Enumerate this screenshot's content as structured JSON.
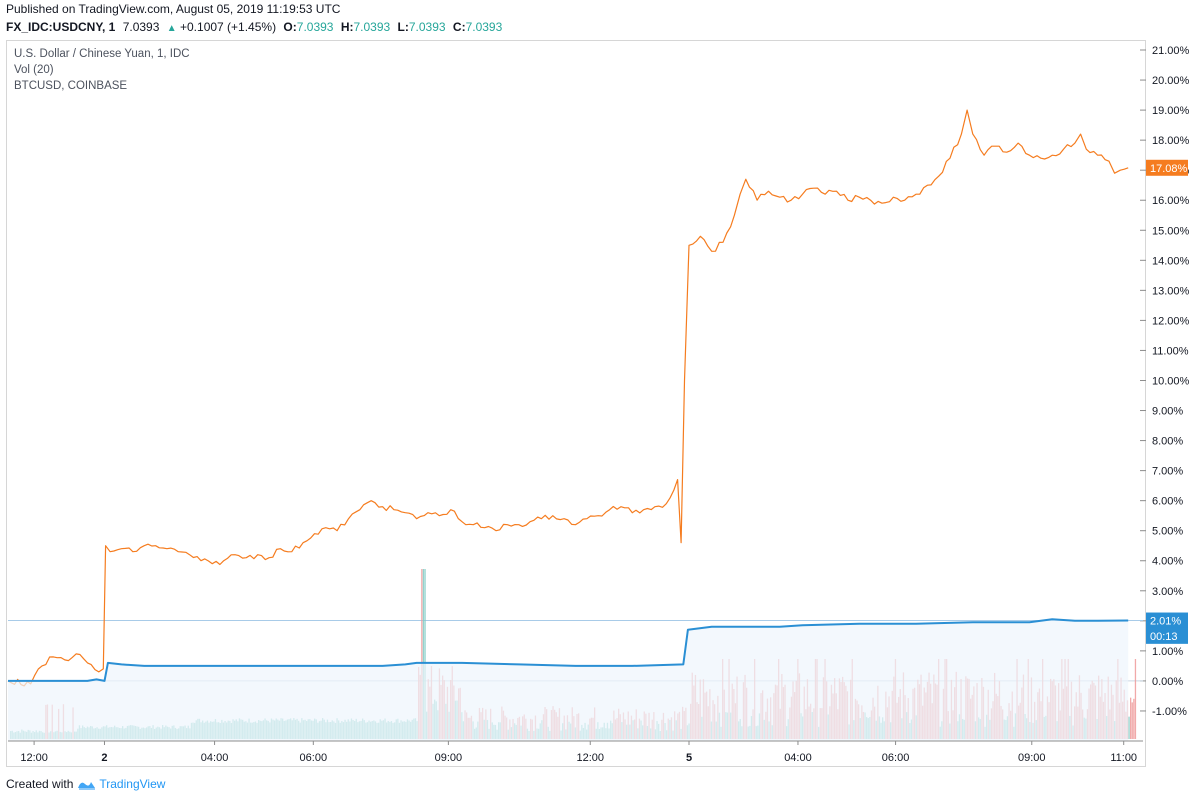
{
  "header": {
    "published": "Published on TradingView.com, August 05, 2019 11:19:53 UTC",
    "symbol": "FX_IDC:USDCNY, 1",
    "last": "7.0393",
    "change": "+0.1007 (+1.45%)",
    "o_label": "O:",
    "o_val": "7.0393",
    "h_label": "H:",
    "h_val": "7.0393",
    "l_label": "L:",
    "l_val": "7.0393",
    "c_label": "C:",
    "c_val": "7.0393",
    "up_arrow": "▲"
  },
  "legend": {
    "main": "U.S. Dollar / Chinese Yuan, 1, IDC",
    "vol": "Vol (20)",
    "compare": "BTCUSD, COINBASE"
  },
  "footer": {
    "created_with": "Created with",
    "brand": "TradingView"
  },
  "colors": {
    "usdcny": "#f57c1f",
    "btc": "#2a8fd4",
    "vol_down": "#ef9a9a",
    "vol_up": "#80cbc4",
    "area_fill": "#eef5fc",
    "axis_text": "#131722"
  },
  "chart_data": {
    "type": "line",
    "title": "U.S. Dollar / Chinese Yuan, 1, IDC",
    "y_unit": "%",
    "ylim": [
      -2.0,
      21.3
    ],
    "y_ticks": [
      "21.00%",
      "20.00%",
      "19.00%",
      "18.00%",
      "17.00%",
      "16.00%",
      "15.00%",
      "14.00%",
      "13.00%",
      "12.00%",
      "11.00%",
      "10.00%",
      "9.00%",
      "8.00%",
      "7.00%",
      "6.00%",
      "5.00%",
      "4.00%",
      "3.00%",
      "2.00%",
      "1.00%",
      "0.00%",
      "-1.00%"
    ],
    "y_tick_values": [
      21,
      20,
      19,
      18,
      17,
      16,
      15,
      14,
      13,
      12,
      11,
      10,
      9,
      8,
      7,
      6,
      5,
      4,
      3,
      2,
      1,
      0,
      -1
    ],
    "xlim": [
      0,
      100
    ],
    "x_ticks": [
      {
        "label": "12:00",
        "x": 2.3,
        "bold": false
      },
      {
        "label": "2",
        "x": 8.5,
        "bold": true
      },
      {
        "label": "04:00",
        "x": 18.2,
        "bold": false
      },
      {
        "label": "06:00",
        "x": 26.9,
        "bold": false
      },
      {
        "label": "09:00",
        "x": 38.8,
        "bold": false
      },
      {
        "label": "12:00",
        "x": 51.3,
        "bold": false
      },
      {
        "label": "5",
        "x": 60.0,
        "bold": true
      },
      {
        "label": "04:00",
        "x": 69.6,
        "bold": false
      },
      {
        "label": "06:00",
        "x": 78.2,
        "bold": false
      },
      {
        "label": "09:00",
        "x": 90.2,
        "bold": false
      },
      {
        "label": "11:00",
        "x": 98.3,
        "bold": false
      }
    ],
    "series": [
      {
        "name": "USDCNY",
        "points": [
          [
            0,
            0.0
          ],
          [
            2,
            -0.1
          ],
          [
            3,
            0.5
          ],
          [
            4,
            0.8
          ],
          [
            5,
            0.7
          ],
          [
            6,
            0.9
          ],
          [
            7,
            0.6
          ],
          [
            8,
            0.3
          ],
          [
            8.4,
            0.4
          ],
          [
            8.6,
            4.5
          ],
          [
            9,
            4.3
          ],
          [
            10,
            4.4
          ],
          [
            11,
            4.3
          ],
          [
            12,
            4.5
          ],
          [
            13,
            4.5
          ],
          [
            14,
            4.4
          ],
          [
            15,
            4.3
          ],
          [
            16,
            4.2
          ],
          [
            17,
            4.0
          ],
          [
            18,
            3.9
          ],
          [
            19,
            4.0
          ],
          [
            20,
            4.2
          ],
          [
            21,
            4.1
          ],
          [
            22,
            4.2
          ],
          [
            23,
            4.1
          ],
          [
            24,
            4.4
          ],
          [
            25,
            4.3
          ],
          [
            26,
            4.6
          ],
          [
            27,
            4.9
          ],
          [
            28,
            5.1
          ],
          [
            29,
            5.0
          ],
          [
            30,
            5.4
          ],
          [
            31,
            5.7
          ],
          [
            32,
            6.0
          ],
          [
            33,
            5.8
          ],
          [
            34,
            5.7
          ],
          [
            35,
            5.6
          ],
          [
            36,
            5.4
          ],
          [
            37,
            5.6
          ],
          [
            38,
            5.5
          ],
          [
            39,
            5.7
          ],
          [
            40,
            5.3
          ],
          [
            41,
            5.2
          ],
          [
            42,
            5.1
          ],
          [
            43,
            5.0
          ],
          [
            44,
            5.2
          ],
          [
            45,
            5.2
          ],
          [
            46,
            5.3
          ],
          [
            47,
            5.4
          ],
          [
            48,
            5.5
          ],
          [
            49,
            5.4
          ],
          [
            50,
            5.2
          ],
          [
            51,
            5.4
          ],
          [
            52,
            5.5
          ],
          [
            53,
            5.7
          ],
          [
            54,
            5.8
          ],
          [
            55,
            5.6
          ],
          [
            56,
            5.7
          ],
          [
            57,
            5.8
          ],
          [
            58,
            5.9
          ],
          [
            59,
            6.7
          ],
          [
            59.3,
            4.6
          ],
          [
            59.6,
            10.0
          ],
          [
            60,
            14.5
          ],
          [
            61,
            14.8
          ],
          [
            62,
            14.3
          ],
          [
            63,
            14.6
          ],
          [
            64,
            15.5
          ],
          [
            64.5,
            16.2
          ],
          [
            65,
            16.7
          ],
          [
            66,
            16.0
          ],
          [
            67,
            16.3
          ],
          [
            68,
            16.1
          ],
          [
            69,
            16.0
          ],
          [
            70,
            16.2
          ],
          [
            71,
            16.4
          ],
          [
            72,
            16.2
          ],
          [
            73,
            16.3
          ],
          [
            74,
            16.0
          ],
          [
            75,
            16.1
          ],
          [
            76,
            16.0
          ],
          [
            77,
            15.9
          ],
          [
            78,
            16.1
          ],
          [
            79,
            16.0
          ],
          [
            80,
            16.2
          ],
          [
            81,
            16.5
          ],
          [
            82,
            16.8
          ],
          [
            83,
            17.4
          ],
          [
            84,
            18.2
          ],
          [
            84.5,
            19.0
          ],
          [
            85,
            18.2
          ],
          [
            86,
            17.5
          ],
          [
            87,
            17.8
          ],
          [
            88,
            17.6
          ],
          [
            89,
            17.9
          ],
          [
            90,
            17.5
          ],
          [
            91,
            17.4
          ],
          [
            92,
            17.5
          ],
          [
            93,
            17.7
          ],
          [
            94,
            17.9
          ],
          [
            94.5,
            18.2
          ],
          [
            95,
            17.7
          ],
          [
            96,
            17.5
          ],
          [
            97,
            17.3
          ],
          [
            97.5,
            16.9
          ],
          [
            98,
            17.0
          ],
          [
            98.7,
            17.08
          ]
        ]
      },
      {
        "name": "BTCUSD, COINBASE",
        "points": [
          [
            0,
            0.0
          ],
          [
            7,
            0.0
          ],
          [
            7.8,
            0.05
          ],
          [
            8.5,
            0.0
          ],
          [
            8.8,
            0.6
          ],
          [
            10,
            0.55
          ],
          [
            12,
            0.5
          ],
          [
            15,
            0.5
          ],
          [
            20,
            0.5
          ],
          [
            25,
            0.5
          ],
          [
            30,
            0.5
          ],
          [
            33,
            0.5
          ],
          [
            35,
            0.55
          ],
          [
            36,
            0.6
          ],
          [
            38,
            0.6
          ],
          [
            40,
            0.6
          ],
          [
            45,
            0.55
          ],
          [
            50,
            0.5
          ],
          [
            55,
            0.5
          ],
          [
            59.5,
            0.55
          ],
          [
            59.9,
            1.7
          ],
          [
            62,
            1.8
          ],
          [
            65,
            1.8
          ],
          [
            68,
            1.8
          ],
          [
            70,
            1.85
          ],
          [
            75,
            1.9
          ],
          [
            80,
            1.9
          ],
          [
            85,
            1.95
          ],
          [
            90,
            1.95
          ],
          [
            92,
            2.05
          ],
          [
            94,
            2.0
          ],
          [
            96,
            2.0
          ],
          [
            98.7,
            2.01
          ]
        ]
      }
    ],
    "price_labels": [
      {
        "series": "USDCNY",
        "value": 17.08,
        "text": "17.08%"
      },
      {
        "series": "BTCUSD",
        "value": 2.01,
        "text": "2.01%"
      },
      {
        "series": "BTCUSD",
        "value": 1.5,
        "text": "00:13"
      }
    ],
    "volume_note": "Vol (20) histogram along the bottom: tall red bars around 09:00 (day 2) and throughout day 5; green baseline bars across the range."
  }
}
